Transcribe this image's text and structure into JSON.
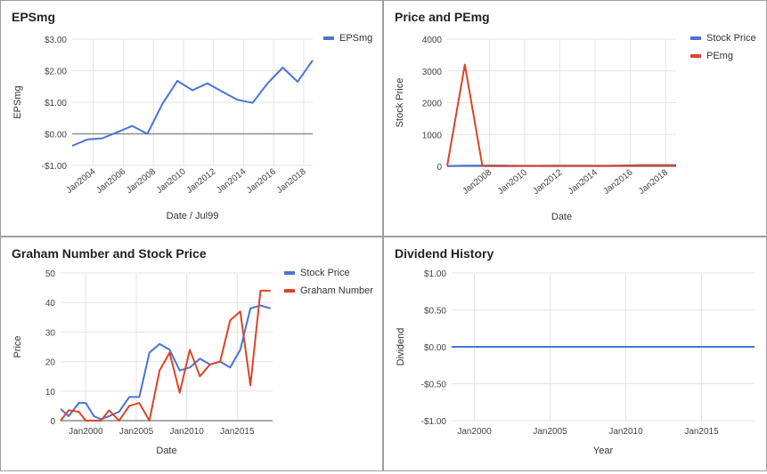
{
  "colors": {
    "blue": "#4a74d3",
    "red": "#db4428",
    "grid": "#e3e3e3",
    "axis": "#8c8c8c",
    "text": "#444444"
  },
  "chart_data": [
    {
      "type": "line",
      "title": "EPSmg",
      "xlabel": "Date / Jul99",
      "ylabel": "EPSmg",
      "ylim": [
        -1,
        3
      ],
      "xlim": [
        2002.6,
        2018.6
      ],
      "yticks": [
        3,
        2,
        1,
        0,
        -1
      ],
      "ytick_labels": [
        "$3.00",
        "$2.00",
        "$1.00",
        "$0.00",
        "-$1.00"
      ],
      "xtick_labels": [
        "Jan2004",
        "Jan2006",
        "Jan2008",
        "Jan2010",
        "Jan2012",
        "Jan2014",
        "Jan2016",
        "Jan2018"
      ],
      "xtick_years": [
        2004,
        2006,
        2008,
        2010,
        2012,
        2014,
        2016,
        2018
      ],
      "legend": "top-right",
      "zero_line": true,
      "series": [
        {
          "name": "EPSmg",
          "color": "#4a74d3",
          "x": [
            2002.6,
            2003.6,
            2004.6,
            2005.6,
            2006.6,
            2007.6,
            2008.6,
            2009.6,
            2010.6,
            2011.6,
            2012.6,
            2013.6,
            2014.6,
            2015.6,
            2016.6,
            2017.6,
            2018.6
          ],
          "y": [
            -0.38,
            -0.18,
            -0.14,
            0.05,
            0.25,
            0.0,
            0.95,
            1.68,
            1.38,
            1.6,
            1.33,
            1.08,
            0.98,
            1.6,
            2.1,
            1.65,
            2.33
          ]
        }
      ]
    },
    {
      "type": "line",
      "title": "Price and PEmg",
      "xlabel": "Date",
      "ylabel": "Stock Price",
      "ylim": [
        0,
        4000
      ],
      "xlim": [
        2005.6,
        2018.6
      ],
      "yticks": [
        4000,
        3000,
        2000,
        1000,
        0
      ],
      "ytick_labels": [
        "4000",
        "3000",
        "2000",
        "1000",
        "0"
      ],
      "xtick_labels": [
        "Jan2008",
        "Jan2010",
        "Jan2012",
        "Jan2014",
        "Jan2016",
        "Jan2018"
      ],
      "xtick_years": [
        2008,
        2010,
        2012,
        2014,
        2016,
        2018
      ],
      "legend": "top-right",
      "series": [
        {
          "name": "Stock Price",
          "color": "#4a74d3",
          "x": [
            2005.6,
            2006.6,
            2007.6,
            2008.6,
            2009.6,
            2010.6,
            2011.6,
            2012.6,
            2013.6,
            2014.6,
            2015.6,
            2016.6,
            2017.6,
            2018.6
          ],
          "y": [
            8,
            23,
            26,
            24,
            17,
            18,
            21,
            19,
            20,
            18,
            24,
            38,
            39,
            38
          ]
        },
        {
          "name": "PEmg",
          "color": "#db4428",
          "x": [
            2005.6,
            2006.6,
            2007.6,
            2008.6,
            2009.6,
            2010.6,
            2011.6,
            2012.6,
            2013.6,
            2014.6,
            2015.6,
            2016.6,
            2017.6,
            2018.6
          ],
          "y": [
            10,
            3200,
            10,
            9,
            10,
            13,
            10,
            11,
            12,
            14,
            18,
            20,
            22,
            17
          ]
        }
      ]
    },
    {
      "type": "line",
      "title": "Graham Number and Stock Price",
      "xlabel": "Date",
      "ylabel": "Price",
      "ylim": [
        0,
        50
      ],
      "xlim": [
        1997.5,
        2018.5
      ],
      "yticks": [
        50,
        40,
        30,
        20,
        10,
        0
      ],
      "ytick_labels": [
        "50",
        "40",
        "30",
        "20",
        "10",
        "0"
      ],
      "xtick_labels": [
        "Jan2000",
        "Jan2005",
        "Jan2010",
        "Jan2015"
      ],
      "xtick_years": [
        2000,
        2005,
        2010,
        2015
      ],
      "legend": "top-right",
      "series": [
        {
          "name": "Stock Price",
          "color": "#4a74d3",
          "x": [
            1997.5,
            1998.3,
            1999.3,
            2000.0,
            2000.8,
            2001.5,
            2002.3,
            2003.3,
            2004.3,
            2005.3,
            2006.3,
            2007.3,
            2008.3,
            2009.3,
            2010.3,
            2011.3,
            2012.3,
            2013.3,
            2014.3,
            2015.3,
            2016.3,
            2017.3,
            2018.3
          ],
          "y": [
            4,
            1.5,
            6,
            6,
            1.5,
            0.5,
            1.5,
            3,
            8,
            8,
            23,
            26,
            24,
            17,
            18,
            21,
            19,
            20,
            18,
            24,
            38,
            39,
            38
          ]
        },
        {
          "name": "Graham Number",
          "color": "#db4428",
          "x": [
            1997.5,
            1998.3,
            1999.3,
            2000.0,
            2000.8,
            2001.5,
            2002.3,
            2003.3,
            2004.3,
            2005.3,
            2006.3,
            2007.3,
            2008.3,
            2009.3,
            2010.3,
            2011.3,
            2012.3,
            2013.3,
            2014.3,
            2015.3,
            2016.3,
            2017.3,
            2018.3
          ],
          "y": [
            0,
            3.5,
            3,
            0,
            0,
            0,
            3.5,
            0,
            5,
            6,
            0,
            17,
            23,
            9.5,
            24,
            15,
            19,
            20,
            34,
            37,
            12,
            44,
            44
          ]
        }
      ]
    },
    {
      "type": "line",
      "title": "Dividend History",
      "xlabel": "Year",
      "ylabel": "Dividend",
      "ylim": [
        -1,
        1
      ],
      "xlim": [
        1998.5,
        2018.5
      ],
      "yticks": [
        1,
        0.5,
        0,
        -0.5,
        -1
      ],
      "ytick_labels": [
        "$1.00",
        "$0.50",
        "$0.00",
        "-$0.50",
        "-$1.00"
      ],
      "xtick_labels": [
        "Jan2000",
        "Jan2005",
        "Jan2010",
        "Jan2015"
      ],
      "xtick_years": [
        2000,
        2005,
        2010,
        2015
      ],
      "legend": "none",
      "series": [
        {
          "name": "",
          "color": "#4a74d3",
          "x": [
            1998.5,
            2018.5
          ],
          "y": [
            0,
            0
          ]
        }
      ]
    }
  ]
}
